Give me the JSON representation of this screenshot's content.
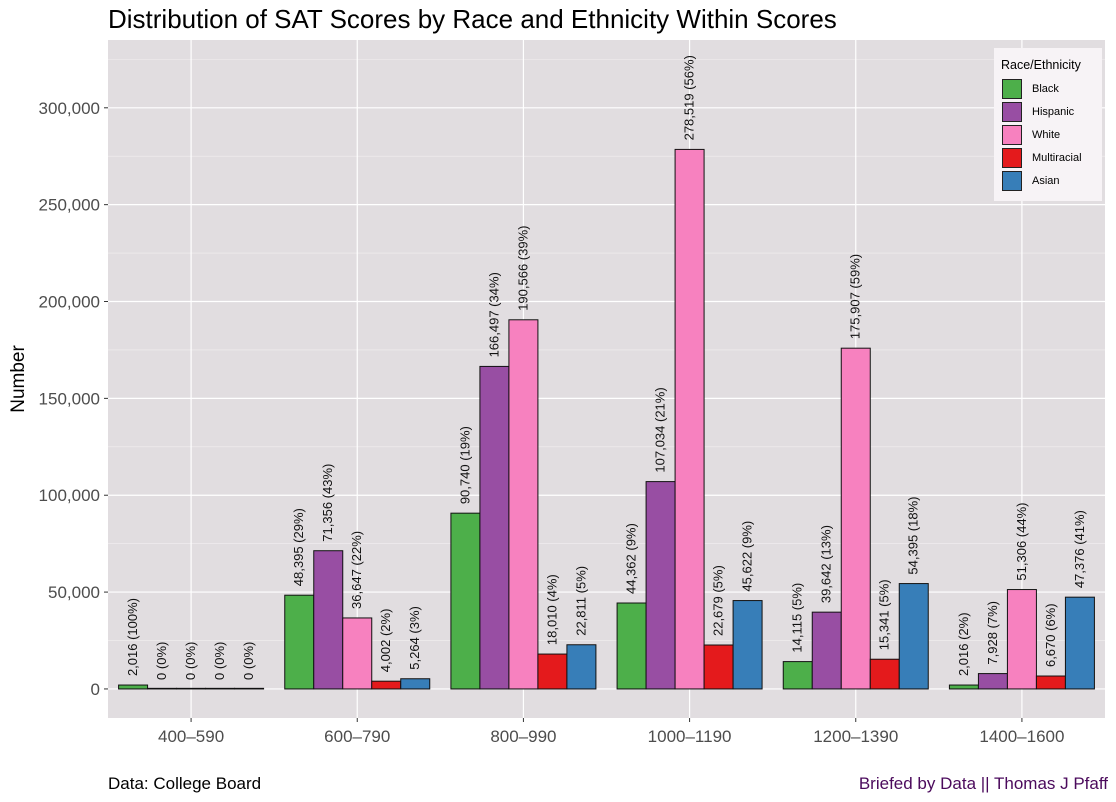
{
  "title": "Distribution of SAT Scores by Race and Ethnicity Within Scores",
  "caption_left": "Data: College Board",
  "caption_right": "Briefed by Data || Thomas J Pfaff",
  "legend": {
    "title": "Race/Ethnicity",
    "items": [
      {
        "label": "Black",
        "color": "#4daf4a"
      },
      {
        "label": "Hispanic",
        "color": "#984ea3"
      },
      {
        "label": "White",
        "color": "#f781bf"
      },
      {
        "label": "Multiracial",
        "color": "#e41a1c"
      },
      {
        "label": "Asian",
        "color": "#377eb8"
      }
    ]
  },
  "chart_data": {
    "type": "bar",
    "title": "Distribution of SAT Scores by Race and Ethnicity Within Scores",
    "xlabel": "",
    "ylabel": "Number",
    "ylim": [
      -15000,
      335000
    ],
    "yticks": [
      0,
      50000,
      100000,
      150000,
      200000,
      250000,
      300000
    ],
    "ytick_labels": [
      "0",
      "50,000",
      "100,000",
      "150,000",
      "200,000",
      "250,000",
      "300,000"
    ],
    "grid": true,
    "legend_position": "top-right",
    "categories": [
      "400–590",
      "600–790",
      "800–990",
      "1000–1190",
      "1200–1390",
      "1400–1600"
    ],
    "series": [
      {
        "name": "Black",
        "color": "#4daf4a",
        "values": [
          2016,
          48395,
          90740,
          44362,
          14115,
          2016
        ],
        "labels": [
          "2,016 (100%)",
          "48,395 (29%)",
          "90,740 (19%)",
          "44,362 (9%)",
          "14,115 (5%)",
          "2,016 (2%)"
        ]
      },
      {
        "name": "Hispanic",
        "color": "#984ea3",
        "values": [
          0,
          71356,
          166497,
          107034,
          39642,
          7928
        ],
        "labels": [
          "0 (0%)",
          "71,356 (43%)",
          "166,497 (34%)",
          "107,034 (21%)",
          "39,642 (13%)",
          "7,928 (7%)"
        ]
      },
      {
        "name": "White",
        "color": "#f781bf",
        "values": [
          0,
          36647,
          190566,
          278519,
          175907,
          51306
        ],
        "labels": [
          "0 (0%)",
          "36,647 (22%)",
          "190,566 (39%)",
          "278,519 (56%)",
          "175,907 (59%)",
          "51,306 (44%)"
        ]
      },
      {
        "name": "Multiracial",
        "color": "#e41a1c",
        "values": [
          0,
          4002,
          18010,
          22679,
          15341,
          6670
        ],
        "labels": [
          "0 (0%)",
          "4,002 (2%)",
          "18,010 (4%)",
          "22,679 (5%)",
          "15,341 (5%)",
          "6,670 (6%)"
        ]
      },
      {
        "name": "Asian",
        "color": "#377eb8",
        "values": [
          0,
          5264,
          22811,
          45622,
          54395,
          47376
        ],
        "labels": [
          "0 (0%)",
          "5,264 (3%)",
          "22,811 (5%)",
          "45,622 (9%)",
          "54,395 (18%)",
          "47,376 (41%)"
        ]
      }
    ]
  }
}
